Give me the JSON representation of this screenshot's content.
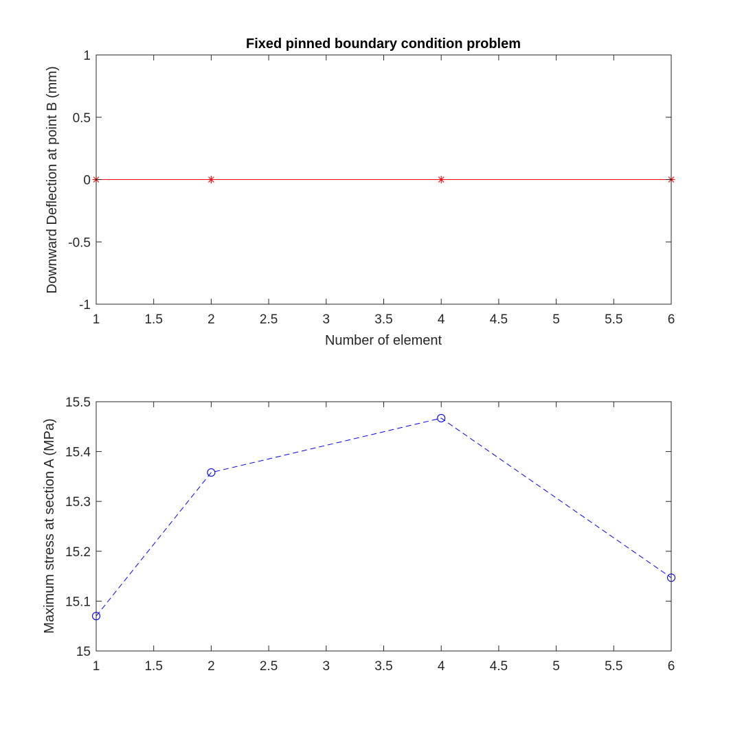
{
  "chart_data": [
    {
      "type": "line",
      "title": "Fixed pinned boundary condition problem",
      "xlabel": "Number of element",
      "ylabel": "Downward Deflection at point B (mm)",
      "xlim": [
        1,
        6
      ],
      "ylim": [
        -1,
        1
      ],
      "xticks": [
        1,
        1.5,
        2,
        2.5,
        3,
        3.5,
        4,
        4.5,
        5,
        5.5,
        6
      ],
      "xtick_labels": [
        "1",
        "1.5",
        "2",
        "2.5",
        "3",
        "3.5",
        "4",
        "4.5",
        "5",
        "5.5",
        "6"
      ],
      "yticks": [
        -1,
        -0.5,
        0,
        0.5,
        1
      ],
      "ytick_labels": [
        "-1",
        "-0.5",
        "0",
        "0.5",
        "1"
      ],
      "grid": false,
      "series": [
        {
          "x": [
            1,
            2,
            4,
            6
          ],
          "y": [
            0,
            0,
            0,
            0
          ],
          "color": "#ff0000",
          "line_style": "solid",
          "marker": "asterisk"
        }
      ]
    },
    {
      "type": "line",
      "title": "",
      "xlabel": "",
      "ylabel": "Maximum stress at section A (MPa)",
      "xlim": [
        1,
        6
      ],
      "ylim": [
        15,
        15.5
      ],
      "xticks": [
        1,
        1.5,
        2,
        2.5,
        3,
        3.5,
        4,
        4.5,
        5,
        5.5,
        6
      ],
      "xtick_labels": [
        "1",
        "1.5",
        "2",
        "2.5",
        "3",
        "3.5",
        "4",
        "4.5",
        "5",
        "5.5",
        "6"
      ],
      "yticks": [
        15,
        15.1,
        15.2,
        15.3,
        15.4,
        15.5
      ],
      "ytick_labels": [
        "15",
        "15.1",
        "15.2",
        "15.3",
        "15.4",
        "15.5"
      ],
      "grid": false,
      "series": [
        {
          "x": [
            1,
            2,
            4,
            6
          ],
          "y": [
            15.07,
            15.358,
            15.467,
            15.147
          ],
          "color": "#0000ff",
          "line_style": "dashed",
          "marker": "circle"
        }
      ]
    }
  ]
}
